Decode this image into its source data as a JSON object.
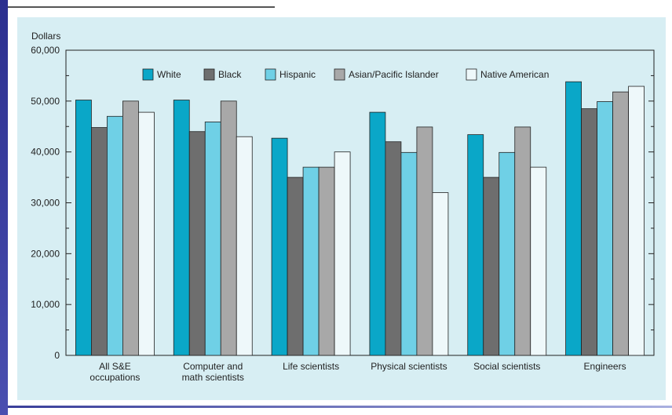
{
  "chart_data": {
    "type": "bar",
    "title": "",
    "ylabel": "Dollars",
    "xlabel": "",
    "ylim": [
      0,
      60000
    ],
    "yticks": [
      0,
      10000,
      20000,
      30000,
      40000,
      50000,
      60000
    ],
    "ytick_labels": [
      "0",
      "10,000",
      "20,000",
      "30,000",
      "40,000",
      "50,000",
      "60,000"
    ],
    "categories": [
      [
        "All S&E",
        "occupations"
      ],
      [
        "Computer and",
        "math scientists"
      ],
      [
        "Life scientists"
      ],
      [
        "Physical scientists"
      ],
      [
        "Social scientists"
      ],
      [
        "Engineers"
      ]
    ],
    "series": [
      {
        "name": "White",
        "color": "#0aa7c8",
        "values": [
          50200,
          50200,
          42700,
          47800,
          43400,
          53800
        ]
      },
      {
        "name": "Black",
        "color": "#6e6e6e",
        "values": [
          44800,
          44000,
          35000,
          42000,
          35000,
          48500
        ]
      },
      {
        "name": "Hispanic",
        "color": "#6fd0e6",
        "values": [
          47000,
          45900,
          37000,
          39900,
          39900,
          49900
        ]
      },
      {
        "name": "Asian/Pacific Islander",
        "color": "#a8a8a8",
        "values": [
          50000,
          50000,
          37000,
          44900,
          44900,
          51800
        ]
      },
      {
        "name": "Native American",
        "color": "#eef8fa",
        "values": [
          47800,
          43000,
          40000,
          32000,
          37000,
          52900
        ]
      }
    ],
    "legend_position": "top",
    "grid": false
  }
}
